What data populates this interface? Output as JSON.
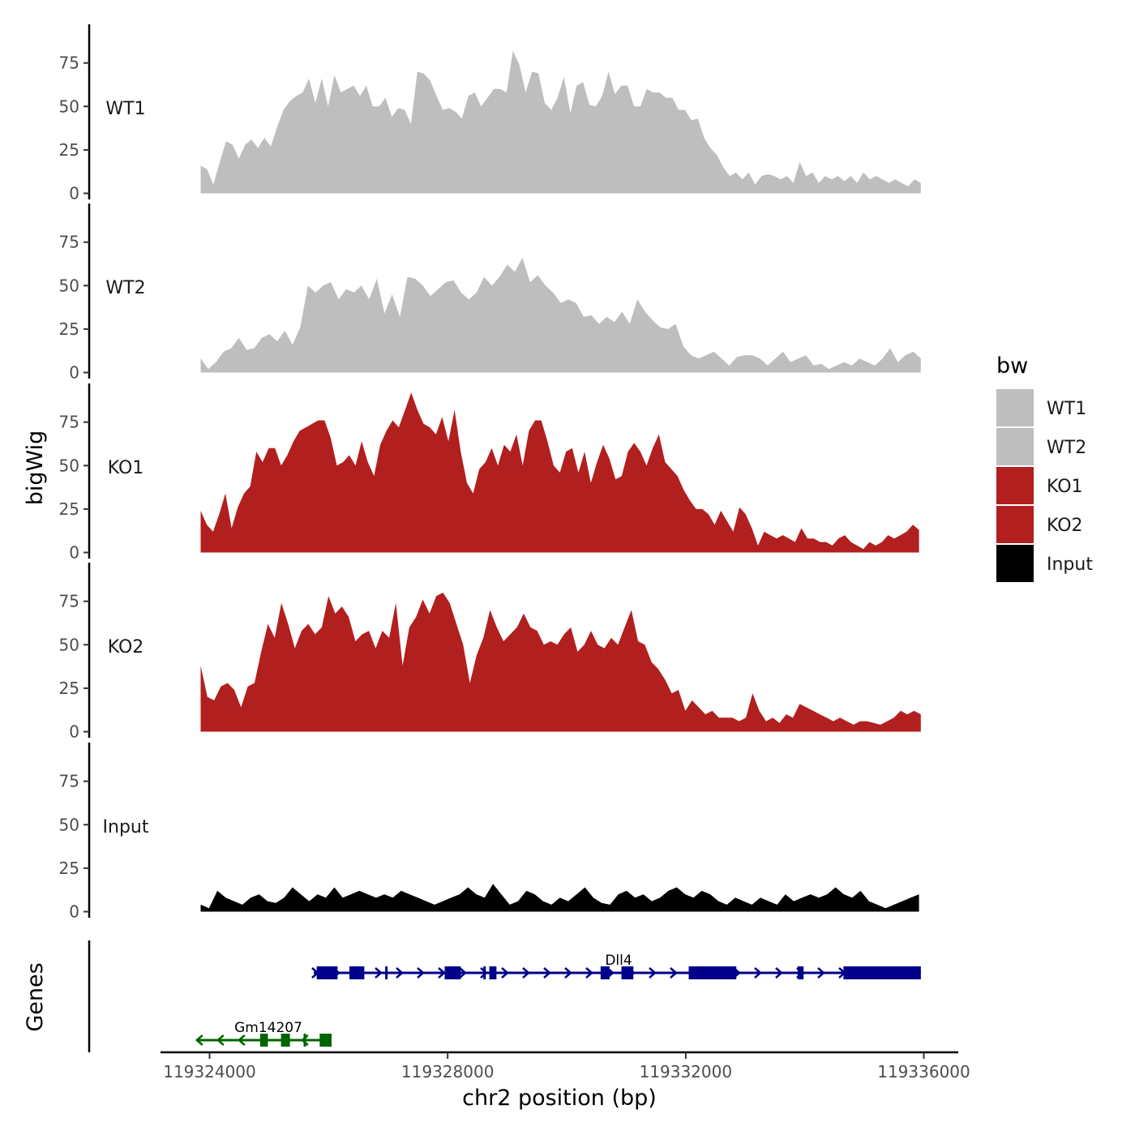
{
  "chart_data": {
    "type": "area",
    "x_label": "chr2 position (bp)",
    "y_label": "bigWig",
    "genes_label": "Genes",
    "x_range": [
      119323600,
      119336100
    ],
    "x_ticks": [
      119324000,
      119328000,
      119332000,
      119336000
    ],
    "x_tick_labels": [
      "119324000",
      "119328000",
      "119332000",
      "119336000"
    ],
    "y_range": [
      0,
      97
    ],
    "y_ticks": [
      0,
      25,
      50,
      75
    ],
    "y_tick_labels": [
      "0",
      "25",
      "50",
      "75"
    ],
    "legend": {
      "title": "bw",
      "entries": [
        {
          "label": "WT1",
          "color": "#bebebe"
        },
        {
          "label": "WT2",
          "color": "#bebebe"
        },
        {
          "label": "KO1",
          "color": "#b21f1f"
        },
        {
          "label": "KO2",
          "color": "#b21f1f"
        },
        {
          "label": "Input",
          "color": "#000000"
        }
      ]
    },
    "tracks": [
      {
        "name": "WT1",
        "color": "#bebebe",
        "x_start": 119323850,
        "x_end": 119335950,
        "values": [
          16,
          14,
          5,
          18,
          30,
          28,
          20,
          28,
          31,
          26,
          32,
          27,
          38,
          48,
          53,
          56,
          58,
          66,
          52,
          66,
          50,
          68,
          58,
          60,
          62,
          56,
          62,
          50,
          50,
          55,
          44,
          49,
          48,
          40,
          70,
          69,
          65,
          56,
          48,
          49,
          47,
          43,
          56,
          58,
          50,
          55,
          60,
          60,
          58,
          82,
          74,
          58,
          70,
          69,
          52,
          48,
          55,
          67,
          46,
          62,
          64,
          51,
          50,
          56,
          70,
          57,
          62,
          62,
          50,
          50,
          60,
          58,
          58,
          55,
          55,
          48,
          48,
          42,
          43,
          32,
          26,
          22,
          15,
          10,
          12,
          8,
          12,
          5,
          10,
          11,
          10,
          8,
          10,
          6,
          18,
          10,
          12,
          6,
          10,
          8,
          10,
          7,
          10,
          6,
          12,
          8,
          10,
          8,
          6,
          8,
          6,
          4,
          8,
          6
        ]
      },
      {
        "name": "WT2",
        "color": "#bebebe",
        "x_start": 119323850,
        "x_end": 119335950,
        "values": [
          8,
          2,
          6,
          12,
          14,
          20,
          13,
          14,
          20,
          22,
          18,
          24,
          16,
          26,
          50,
          46,
          50,
          52,
          42,
          48,
          46,
          50,
          42,
          54,
          34,
          45,
          32,
          55,
          54,
          50,
          44,
          48,
          52,
          53,
          46,
          42,
          46,
          55,
          50,
          55,
          62,
          58,
          66,
          52,
          56,
          50,
          46,
          40,
          42,
          40,
          32,
          33,
          28,
          32,
          29,
          35,
          28,
          42,
          35,
          30,
          26,
          25,
          28,
          15,
          10,
          8,
          10,
          12,
          8,
          4,
          9,
          10,
          10,
          8,
          4,
          8,
          12,
          6,
          8,
          10,
          4,
          5,
          2,
          4,
          6,
          4,
          8,
          6,
          4,
          8,
          14,
          6,
          10,
          12,
          8
        ]
      },
      {
        "name": "KO1",
        "color": "#b21f1f",
        "x_start": 119323850,
        "x_end": 119335920,
        "values": [
          24,
          16,
          12,
          22,
          34,
          14,
          26,
          34,
          38,
          58,
          52,
          60,
          60,
          50,
          56,
          64,
          70,
          72,
          74,
          76,
          76,
          66,
          50,
          52,
          56,
          50,
          64,
          52,
          44,
          62,
          70,
          76,
          72,
          82,
          92,
          82,
          74,
          72,
          68,
          78,
          64,
          82,
          58,
          40,
          34,
          48,
          52,
          60,
          50,
          62,
          58,
          68,
          50,
          70,
          76,
          76,
          64,
          50,
          46,
          58,
          60,
          46,
          58,
          40,
          52,
          62,
          54,
          42,
          44,
          58,
          63,
          58,
          50,
          60,
          68,
          52,
          48,
          44,
          36,
          30,
          25,
          25,
          22,
          16,
          24,
          18,
          12,
          26,
          22,
          14,
          4,
          12,
          10,
          8,
          10,
          8,
          6,
          14,
          8,
          8,
          6,
          6,
          4,
          8,
          10,
          6,
          4,
          2,
          6,
          4,
          6,
          10,
          8,
          10,
          12,
          16,
          13
        ]
      },
      {
        "name": "KO2",
        "color": "#b21f1f",
        "x_start": 119323850,
        "x_end": 119335950,
        "values": [
          38,
          20,
          18,
          26,
          28,
          24,
          14,
          26,
          28,
          46,
          62,
          54,
          74,
          62,
          48,
          58,
          62,
          56,
          60,
          78,
          68,
          72,
          66,
          52,
          56,
          58,
          48,
          58,
          54,
          74,
          38,
          60,
          66,
          76,
          68,
          78,
          80,
          74,
          62,
          50,
          28,
          44,
          54,
          70,
          60,
          52,
          56,
          60,
          68,
          60,
          58,
          50,
          52,
          50,
          56,
          60,
          46,
          50,
          58,
          50,
          48,
          54,
          50,
          60,
          70,
          52,
          50,
          40,
          36,
          30,
          22,
          24,
          12,
          18,
          14,
          10,
          12,
          8,
          8,
          8,
          6,
          8,
          22,
          12,
          6,
          8,
          5,
          10,
          8,
          16,
          14,
          12,
          10,
          8,
          6,
          8,
          6,
          4,
          6,
          6,
          5,
          4,
          6,
          8,
          12,
          10,
          12,
          10
        ]
      },
      {
        "name": "Input",
        "color": "#000000",
        "x_start": 119323850,
        "x_end": 119335920,
        "values": [
          4,
          2,
          12,
          8,
          6,
          4,
          8,
          10,
          6,
          5,
          8,
          14,
          10,
          6,
          10,
          8,
          14,
          8,
          10,
          12,
          10,
          8,
          10,
          8,
          12,
          10,
          8,
          6,
          4,
          6,
          8,
          10,
          14,
          10,
          8,
          16,
          10,
          4,
          6,
          12,
          10,
          6,
          4,
          8,
          6,
          10,
          14,
          8,
          5,
          4,
          10,
          12,
          8,
          10,
          6,
          8,
          12,
          14,
          10,
          8,
          12,
          10,
          6,
          4,
          8,
          6,
          4,
          8,
          6,
          4,
          10,
          6,
          8,
          10,
          8,
          10,
          14,
          10,
          8,
          12,
          6,
          4,
          2,
          4,
          6,
          8,
          10
        ]
      }
    ],
    "genes": [
      {
        "name": "Dll4",
        "strand": "+",
        "color": "#00008b",
        "start": 119325750,
        "end": 119335950,
        "exons": [
          [
            119325800,
            119326150
          ],
          [
            119326350,
            119326600
          ],
          [
            119326950,
            119326980
          ],
          [
            119327950,
            119328220
          ],
          [
            119328600,
            119328630
          ],
          [
            119328700,
            119328820
          ],
          [
            119330570,
            119330720
          ],
          [
            119330920,
            119331120
          ],
          [
            119332050,
            119332850
          ],
          [
            119333880,
            119333980
          ],
          [
            119334650,
            119335950
          ]
        ]
      },
      {
        "name": "Gm14207",
        "strand": "-",
        "color": "#006400",
        "start": 119323800,
        "end": 119326050,
        "exons": [
          [
            119324850,
            119324980
          ],
          [
            119325200,
            119325350
          ],
          [
            119325580,
            119325620
          ],
          [
            119325850,
            119326050
          ]
        ]
      }
    ]
  }
}
